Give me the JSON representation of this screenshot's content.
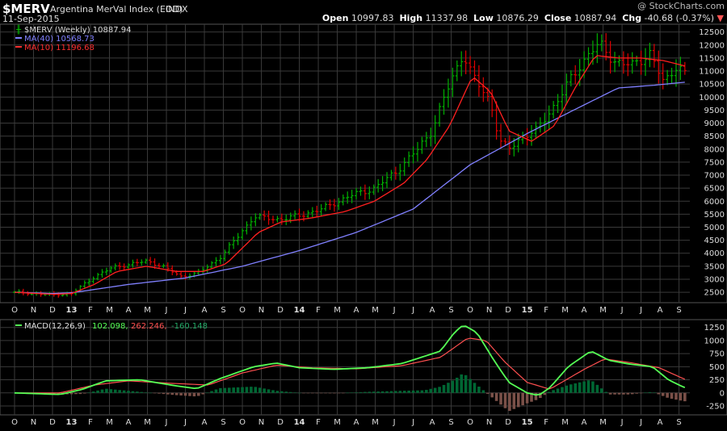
{
  "header": {
    "symbol": "$MERV",
    "name": "Argentina MerVal Index (EOD)",
    "exchange": "INDX",
    "date": "11-Sep-2015",
    "watermark": "@ StockCharts.com",
    "open_label": "Open",
    "open": "10997.83",
    "high_label": "High",
    "high": "11337.98",
    "low_label": "Low",
    "low": "10876.29",
    "close_label": "Close",
    "close": "10887.94",
    "chg_label": "Chg",
    "chg": "-40.68 (-0.37%)"
  },
  "legend": {
    "price": "$MERV (Weekly) 10887.94",
    "ma40": "MA(40) 10568.73",
    "ma10": "MA(10) 11196.68",
    "macd_name": "MACD(12,26,9)",
    "macd_val": "102.098,",
    "signal_val": "262.246,",
    "hist_val": "-160.148"
  },
  "colors": {
    "grid": "#3a3a3a",
    "up": "#00b000",
    "down": "#e00000",
    "ma40": "#8080ff",
    "ma10": "#ff2020",
    "macd": "#55ff55",
    "signal": "#ff5050",
    "hist_pos": "#006633",
    "hist_neg": "#7a5048"
  },
  "chart_data": [
    {
      "type": "candlestick",
      "title": "$MERV (Weekly)",
      "x_month_labels": [
        "O",
        "N",
        "D",
        "13",
        "F",
        "M",
        "A",
        "M",
        "J",
        "J",
        "A",
        "S",
        "O",
        "N",
        "D",
        "14",
        "F",
        "M",
        "A",
        "M",
        "J",
        "J",
        "A",
        "S",
        "O",
        "N",
        "D",
        "15",
        "F",
        "M",
        "A",
        "M",
        "J",
        "J",
        "A",
        "S"
      ],
      "yticks": [
        2500,
        3000,
        3500,
        4000,
        4500,
        5000,
        5500,
        6000,
        6500,
        7000,
        7500,
        8000,
        8500,
        9000,
        9500,
        10000,
        10500,
        11000,
        11500,
        12000,
        12500
      ],
      "ylim": [
        2100,
        12800
      ],
      "x_start": 2012.75,
      "x_end": 2015.7,
      "grid": true,
      "price_keypoints": [
        [
          2012.75,
          2500
        ],
        [
          2012.92,
          2400
        ],
        [
          2013.0,
          2450
        ],
        [
          2013.1,
          3100
        ],
        [
          2013.18,
          3450
        ],
        [
          2013.33,
          3700
        ],
        [
          2013.4,
          3500
        ],
        [
          2013.48,
          3100
        ],
        [
          2013.56,
          3250
        ],
        [
          2013.66,
          3900
        ],
        [
          2013.8,
          5400
        ],
        [
          2013.92,
          5300
        ],
        [
          2014.0,
          5450
        ],
        [
          2014.1,
          5700
        ],
        [
          2014.22,
          6200
        ],
        [
          2014.33,
          6500
        ],
        [
          2014.42,
          7100
        ],
        [
          2014.52,
          8000
        ],
        [
          2014.58,
          8700
        ],
        [
          2014.66,
          10500
        ],
        [
          2014.72,
          11700
        ],
        [
          2014.76,
          10800
        ],
        [
          2014.84,
          9800
        ],
        [
          2014.88,
          8300
        ],
        [
          2014.92,
          8000
        ],
        [
          2014.98,
          8500
        ],
        [
          2015.04,
          8700
        ],
        [
          2015.12,
          9700
        ],
        [
          2015.2,
          10800
        ],
        [
          2015.28,
          11800
        ],
        [
          2015.32,
          12000
        ],
        [
          2015.38,
          11400
        ],
        [
          2015.46,
          11200
        ],
        [
          2015.54,
          11700
        ],
        [
          2015.6,
          10500
        ],
        [
          2015.66,
          11300
        ],
        [
          2015.69,
          10900
        ]
      ],
      "ma40_keypoints": [
        [
          2012.75,
          2500
        ],
        [
          2012.92,
          2450
        ],
        [
          2013.0,
          2480
        ],
        [
          2013.25,
          2800
        ],
        [
          2013.5,
          3050
        ],
        [
          2013.75,
          3500
        ],
        [
          2014.0,
          4100
        ],
        [
          2014.25,
          4800
        ],
        [
          2014.5,
          5700
        ],
        [
          2014.75,
          7400
        ],
        [
          2015.0,
          8600
        ],
        [
          2015.25,
          9700
        ],
        [
          2015.4,
          10350
        ],
        [
          2015.55,
          10450
        ],
        [
          2015.69,
          10570
        ]
      ],
      "ma10_keypoints": [
        [
          2012.75,
          2500
        ],
        [
          2012.92,
          2420
        ],
        [
          2013.0,
          2450
        ],
        [
          2013.1,
          2800
        ],
        [
          2013.2,
          3300
        ],
        [
          2013.33,
          3500
        ],
        [
          2013.46,
          3300
        ],
        [
          2013.58,
          3300
        ],
        [
          2013.68,
          3600
        ],
        [
          2013.82,
          4800
        ],
        [
          2013.92,
          5200
        ],
        [
          2014.05,
          5350
        ],
        [
          2014.2,
          5600
        ],
        [
          2014.33,
          6000
        ],
        [
          2014.46,
          6700
        ],
        [
          2014.56,
          7600
        ],
        [
          2014.66,
          8900
        ],
        [
          2014.76,
          10800
        ],
        [
          2014.84,
          10200
        ],
        [
          2014.92,
          8700
        ],
        [
          2015.02,
          8300
        ],
        [
          2015.12,
          8900
        ],
        [
          2015.22,
          10500
        ],
        [
          2015.3,
          11600
        ],
        [
          2015.4,
          11500
        ],
        [
          2015.5,
          11500
        ],
        [
          2015.6,
          11400
        ],
        [
          2015.69,
          11200
        ]
      ]
    },
    {
      "type": "line",
      "title": "MACD(12,26,9)",
      "yticks": [
        -250,
        0,
        250,
        500,
        750,
        1000,
        1250
      ],
      "ylim": [
        -420,
        1400
      ],
      "series": [
        {
          "name": "MACD",
          "keypoints": [
            [
              2012.75,
              0
            ],
            [
              2012.95,
              -30
            ],
            [
              2013.05,
              70
            ],
            [
              2013.15,
              230
            ],
            [
              2013.3,
              250
            ],
            [
              2013.45,
              140
            ],
            [
              2013.55,
              80
            ],
            [
              2013.65,
              270
            ],
            [
              2013.8,
              500
            ],
            [
              2013.9,
              570
            ],
            [
              2014.0,
              480
            ],
            [
              2014.15,
              450
            ],
            [
              2014.3,
              480
            ],
            [
              2014.45,
              560
            ],
            [
              2014.55,
              700
            ],
            [
              2014.62,
              800
            ],
            [
              2014.68,
              1150
            ],
            [
              2014.72,
              1300
            ],
            [
              2014.78,
              1150
            ],
            [
              2014.85,
              650
            ],
            [
              2014.92,
              200
            ],
            [
              2015.0,
              0
            ],
            [
              2015.05,
              -50
            ],
            [
              2015.1,
              100
            ],
            [
              2015.18,
              500
            ],
            [
              2015.28,
              800
            ],
            [
              2015.36,
              620
            ],
            [
              2015.45,
              550
            ],
            [
              2015.55,
              500
            ],
            [
              2015.62,
              250
            ],
            [
              2015.69,
              102
            ]
          ]
        },
        {
          "name": "Signal",
          "keypoints": [
            [
              2012.75,
              0
            ],
            [
              2012.95,
              0
            ],
            [
              2013.1,
              150
            ],
            [
              2013.25,
              230
            ],
            [
              2013.45,
              180
            ],
            [
              2013.6,
              150
            ],
            [
              2013.75,
              380
            ],
            [
              2013.9,
              530
            ],
            [
              2014.05,
              480
            ],
            [
              2014.25,
              460
            ],
            [
              2014.45,
              520
            ],
            [
              2014.62,
              680
            ],
            [
              2014.74,
              1050
            ],
            [
              2014.82,
              1000
            ],
            [
              2014.9,
              600
            ],
            [
              2015.0,
              200
            ],
            [
              2015.1,
              70
            ],
            [
              2015.25,
              450
            ],
            [
              2015.34,
              650
            ],
            [
              2015.45,
              580
            ],
            [
              2015.58,
              480
            ],
            [
              2015.69,
              262
            ]
          ]
        },
        {
          "name": "Histogram",
          "keypoints": [
            [
              2012.75,
              0
            ],
            [
              2012.95,
              -30
            ],
            [
              2013.05,
              -20
            ],
            [
              2013.15,
              80
            ],
            [
              2013.3,
              20
            ],
            [
              2013.45,
              -40
            ],
            [
              2013.55,
              -70
            ],
            [
              2013.65,
              90
            ],
            [
              2013.8,
              120
            ],
            [
              2013.9,
              40
            ],
            [
              2014.0,
              0
            ],
            [
              2014.15,
              -10
            ],
            [
              2014.3,
              20
            ],
            [
              2014.45,
              40
            ],
            [
              2014.55,
              50
            ],
            [
              2014.62,
              120
            ],
            [
              2014.68,
              250
            ],
            [
              2014.72,
              380
            ],
            [
              2014.78,
              150
            ],
            [
              2014.85,
              -100
            ],
            [
              2014.92,
              -350
            ],
            [
              2015.0,
              -200
            ],
            [
              2015.05,
              -120
            ],
            [
              2015.1,
              30
            ],
            [
              2015.18,
              150
            ],
            [
              2015.28,
              250
            ],
            [
              2015.36,
              -30
            ],
            [
              2015.45,
              -30
            ],
            [
              2015.55,
              20
            ],
            [
              2015.62,
              -100
            ],
            [
              2015.69,
              -160
            ]
          ]
        }
      ]
    }
  ]
}
